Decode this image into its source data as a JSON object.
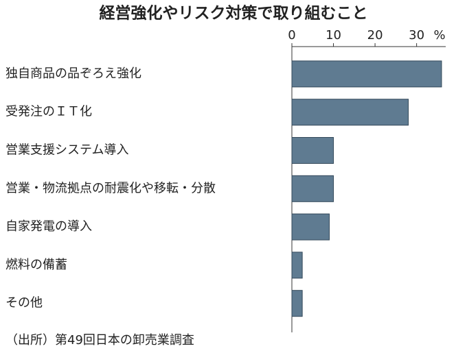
{
  "chart_data": {
    "type": "bar",
    "orientation": "horizontal",
    "title": "経営強化やリスク対策で取り組むこと",
    "unit_label": "%",
    "source": "（出所）第49回日本の卸売業調査",
    "categories": [
      "独自商品の品ぞろえ強化",
      "受発注のＩＴ化",
      "営業支援システム導入",
      "営業・物流拠点の耐震化や移転・分散",
      "自家発電の導入",
      "燃料の備蓄",
      "その他"
    ],
    "values": [
      36,
      28,
      10,
      10,
      9,
      2.5,
      2.5
    ],
    "color": "#5f7b91",
    "xlim": [
      0,
      37
    ],
    "xticks": [
      0,
      10,
      20,
      30
    ],
    "grid": false
  }
}
